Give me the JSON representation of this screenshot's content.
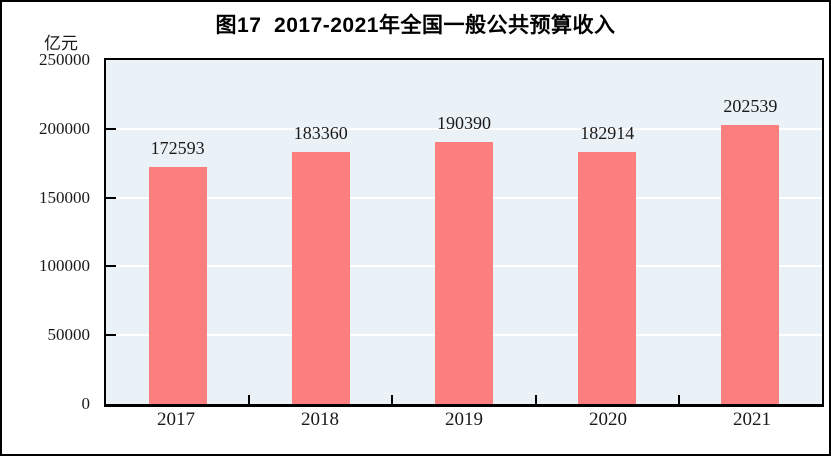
{
  "chart_data": {
    "type": "bar",
    "title": "图17  2017-2021年全国一般公共预算收入",
    "unit_label": "亿元",
    "xlabel": "",
    "ylabel": "亿元",
    "categories": [
      "2017",
      "2018",
      "2019",
      "2020",
      "2021"
    ],
    "values": [
      172593,
      183360,
      190390,
      182914,
      202539
    ],
    "ylim": [
      0,
      250000
    ],
    "yticks": [
      0,
      50000,
      100000,
      150000,
      200000,
      250000
    ],
    "grid": true,
    "legend": false,
    "value_labels_shown": true,
    "colors": {
      "bar": "#FC7E7E",
      "plot_background": "#EBF2F7",
      "gridline": "#FFFFFF",
      "border": "#000000",
      "text": "#1A1A1A"
    }
  }
}
